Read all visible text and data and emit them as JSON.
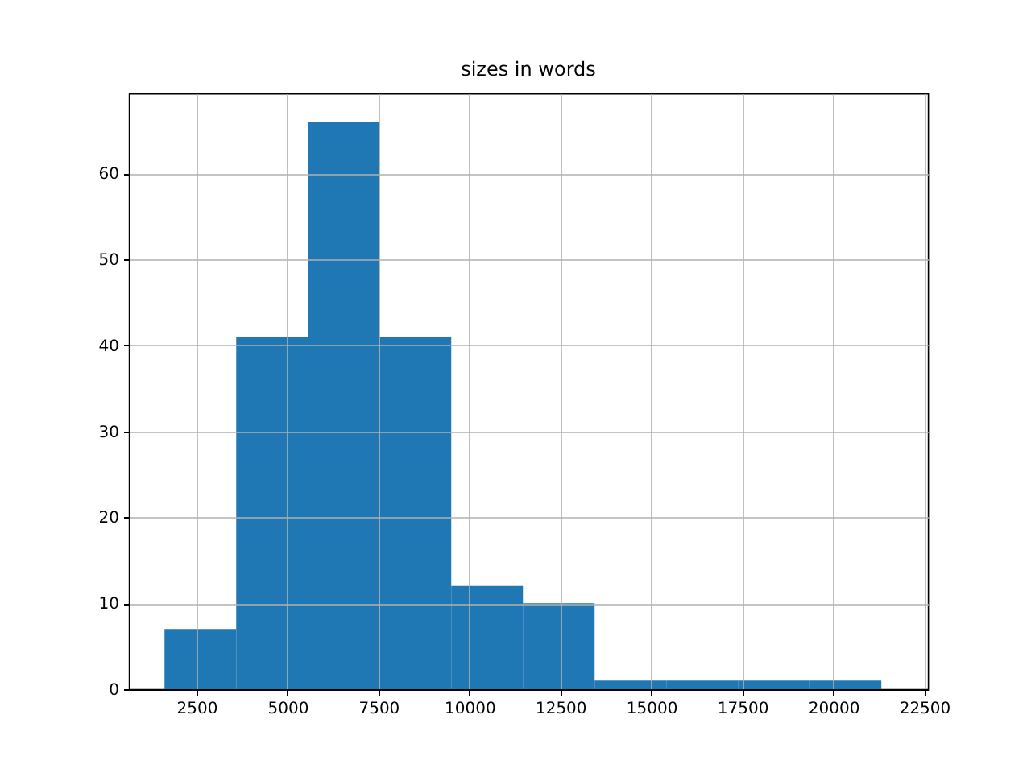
{
  "chart_data": {
    "type": "histogram",
    "title": "sizes in words",
    "bins": [
      1620,
      3590,
      5560,
      7530,
      9500,
      11470,
      13440,
      15410,
      17380,
      19350,
      21320
    ],
    "values": [
      7,
      41,
      66,
      41,
      12,
      10,
      1,
      1,
      1,
      1
    ],
    "color": "#1f77b4",
    "xlim": [
      640,
      22600
    ],
    "ylim": [
      0,
      69.3
    ],
    "xticks": [
      2500,
      5000,
      7500,
      10000,
      12500,
      15000,
      17500,
      20000,
      22500
    ],
    "yticks": [
      0,
      10,
      20,
      30,
      40,
      50,
      60
    ],
    "grid": true
  }
}
